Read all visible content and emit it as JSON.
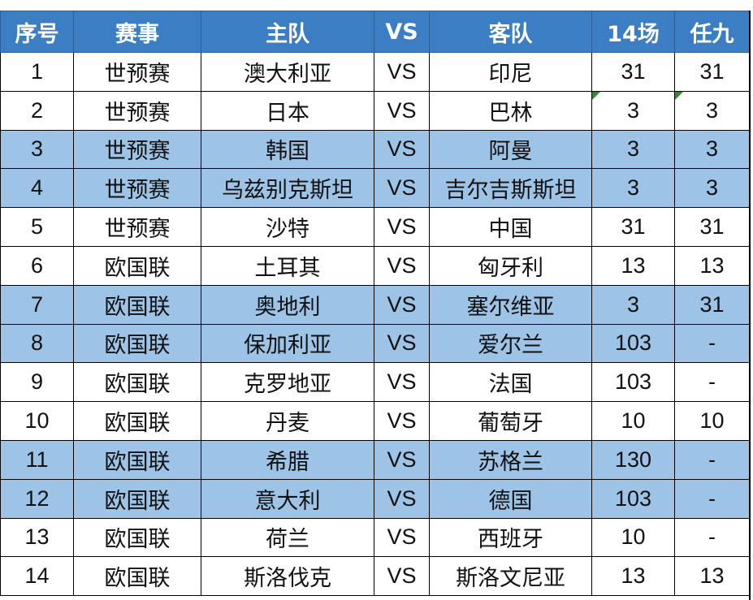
{
  "table": {
    "headers": [
      "序号",
      "赛事",
      "主队",
      "VS",
      "客队",
      "14场",
      "任九"
    ],
    "highlight_color": "#9dc3e6",
    "header_color": "#3c7ec3",
    "rows": [
      {
        "no": "1",
        "event": "世预赛",
        "home": "澳大利亚",
        "vs": "VS",
        "away": "印尼",
        "s14": "31",
        "r9": "31",
        "hl": false
      },
      {
        "no": "2",
        "event": "世预赛",
        "home": "日本",
        "vs": "VS",
        "away": "巴林",
        "s14": "3",
        "r9": "3",
        "hl": false,
        "note": true
      },
      {
        "no": "3",
        "event": "世预赛",
        "home": "韩国",
        "vs": "VS",
        "away": "阿曼",
        "s14": "3",
        "r9": "3",
        "hl": true
      },
      {
        "no": "4",
        "event": "世预赛",
        "home": "乌兹别克斯坦",
        "vs": "VS",
        "away": "吉尔吉斯斯坦",
        "s14": "3",
        "r9": "3",
        "hl": true
      },
      {
        "no": "5",
        "event": "世预赛",
        "home": "沙特",
        "vs": "VS",
        "away": "中国",
        "s14": "31",
        "r9": "31",
        "hl": false
      },
      {
        "no": "6",
        "event": "欧国联",
        "home": "土耳其",
        "vs": "VS",
        "away": "匈牙利",
        "s14": "13",
        "r9": "13",
        "hl": false
      },
      {
        "no": "7",
        "event": "欧国联",
        "home": "奥地利",
        "vs": "VS",
        "away": "塞尔维亚",
        "s14": "3",
        "r9": "31",
        "hl": true
      },
      {
        "no": "8",
        "event": "欧国联",
        "home": "保加利亚",
        "vs": "VS",
        "away": "爱尔兰",
        "s14": "103",
        "r9": "-",
        "hl": true
      },
      {
        "no": "9",
        "event": "欧国联",
        "home": "克罗地亚",
        "vs": "VS",
        "away": "法国",
        "s14": "103",
        "r9": "-",
        "hl": false
      },
      {
        "no": "10",
        "event": "欧国联",
        "home": "丹麦",
        "vs": "VS",
        "away": "葡萄牙",
        "s14": "10",
        "r9": "10",
        "hl": false
      },
      {
        "no": "11",
        "event": "欧国联",
        "home": "希腊",
        "vs": "VS",
        "away": "苏格兰",
        "s14": "130",
        "r9": "-",
        "hl": true
      },
      {
        "no": "12",
        "event": "欧国联",
        "home": "意大利",
        "vs": "VS",
        "away": "德国",
        "s14": "103",
        "r9": "-",
        "hl": true
      },
      {
        "no": "13",
        "event": "欧国联",
        "home": "荷兰",
        "vs": "VS",
        "away": "西班牙",
        "s14": "10",
        "r9": "-",
        "hl": false
      },
      {
        "no": "14",
        "event": "欧国联",
        "home": "斯洛伐克",
        "vs": "VS",
        "away": "斯洛文尼亚",
        "s14": "13",
        "r9": "13",
        "hl": false
      }
    ]
  }
}
